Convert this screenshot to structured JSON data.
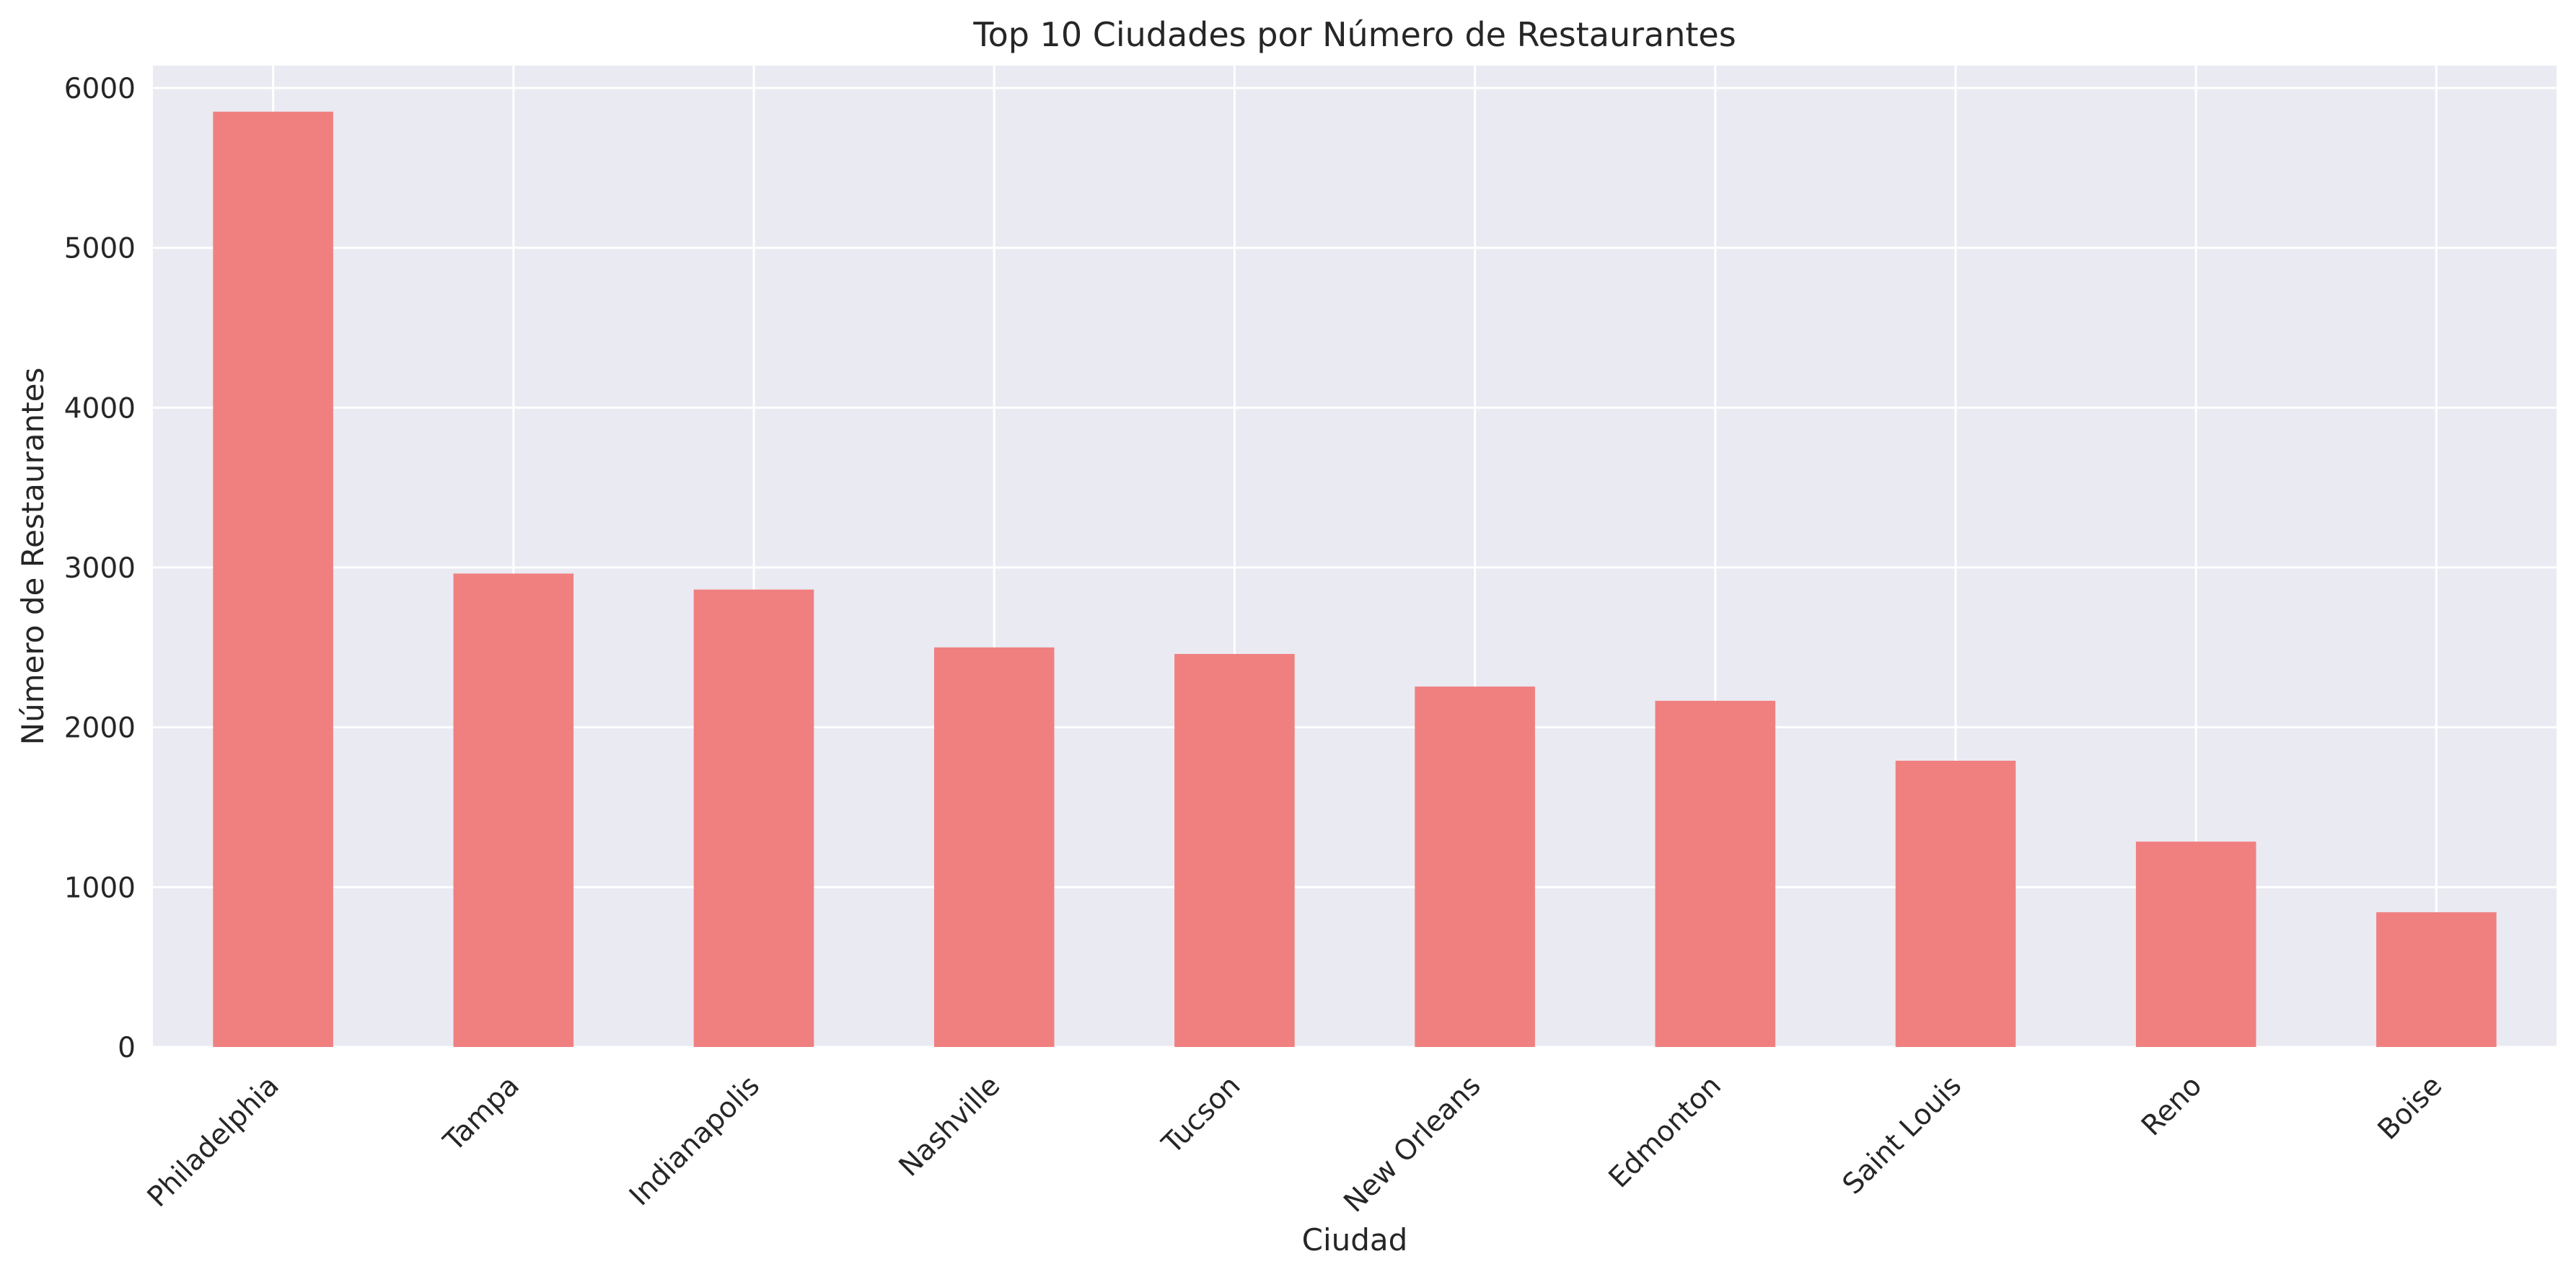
{
  "colors": {
    "background": "#ffffff",
    "plot_background": "#eaeaf2",
    "grid": "#ffffff",
    "bar": "#f08080",
    "text": "#262626"
  },
  "chart_data": {
    "type": "bar",
    "title": "Top 10 Ciudades por Número de Restaurantes",
    "xlabel": "Ciudad",
    "ylabel": "Número de Restaurantes",
    "categories": [
      "Philadelphia",
      "Tampa",
      "Indianapolis",
      "Nashville",
      "Tucson",
      "New Orleans",
      "Edmonton",
      "Saint Louis",
      "Reno",
      "Boise"
    ],
    "values": [
      5852,
      2962,
      2862,
      2500,
      2459,
      2255,
      2166,
      1791,
      1285,
      843
    ],
    "ylim": [
      0,
      6140
    ],
    "yticks": [
      "0",
      "1000",
      "2000",
      "3000",
      "4000",
      "5000",
      "6000"
    ],
    "grid": true,
    "legend": "none"
  }
}
